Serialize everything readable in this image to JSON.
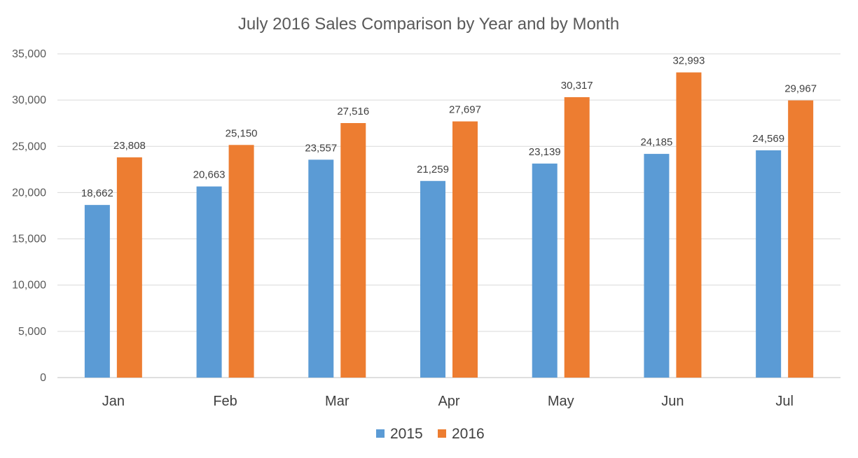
{
  "chart_data": {
    "type": "bar",
    "title": "July 2016 Sales Comparison by Year and by Month",
    "categories": [
      "Jan",
      "Feb",
      "Mar",
      "Apr",
      "May",
      "Jun",
      "Jul"
    ],
    "series": [
      {
        "name": "2015",
        "color": "#5b9bd5",
        "values": [
          18662,
          20663,
          23557,
          21259,
          23139,
          24185,
          24569
        ]
      },
      {
        "name": "2016",
        "color": "#ed7d31",
        "values": [
          23808,
          25150,
          27516,
          27697,
          30317,
          32993,
          29967
        ]
      }
    ],
    "ylim": [
      0,
      35000
    ],
    "yticks": [
      0,
      5000,
      10000,
      15000,
      20000,
      25000,
      30000,
      35000
    ],
    "xlabel": "",
    "ylabel": "",
    "grid": true,
    "legend": "bottom",
    "data_labels": true
  }
}
